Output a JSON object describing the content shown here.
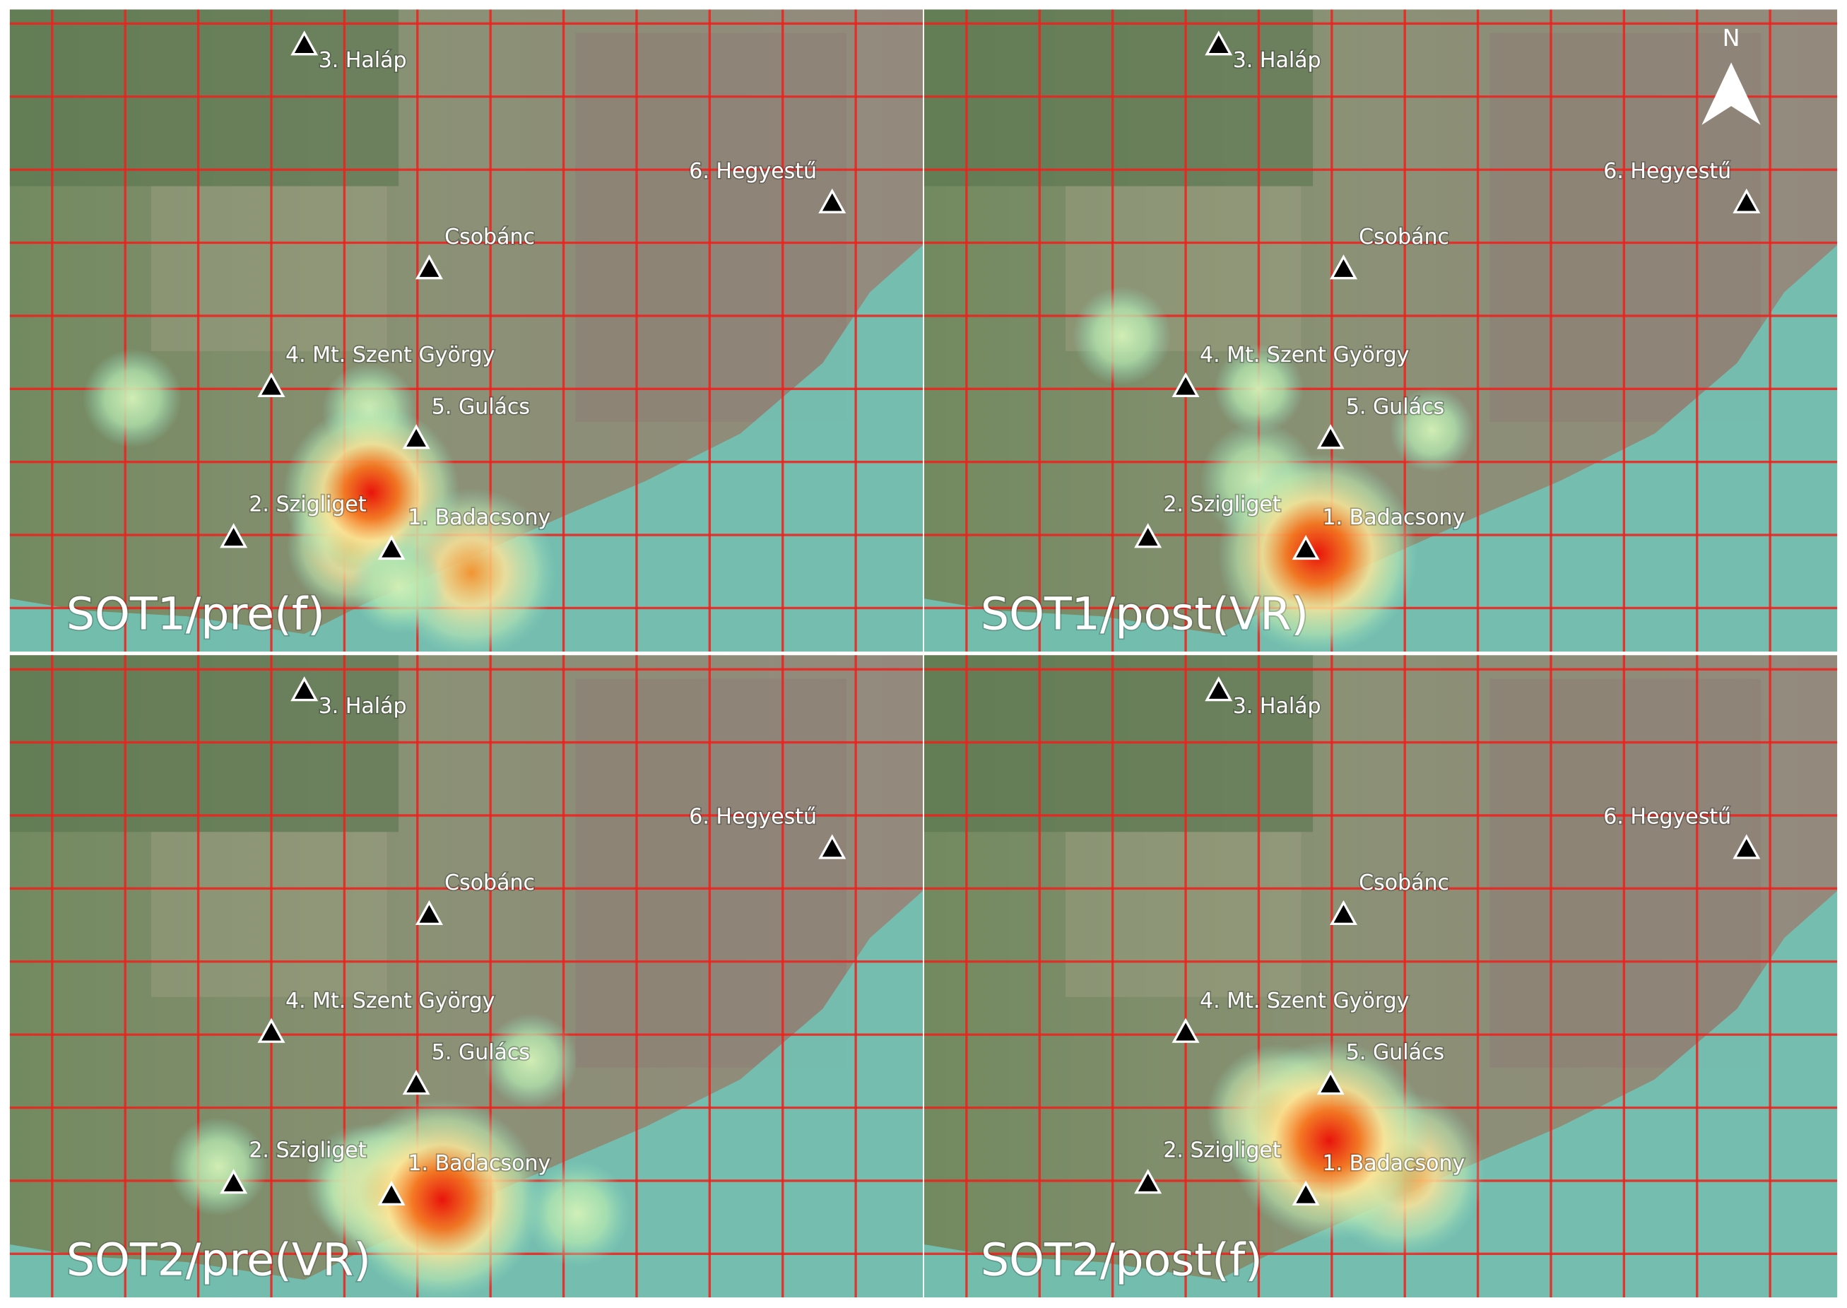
{
  "panels": [
    {
      "label": "SOT1/pre(f)"
    },
    {
      "label": "SOT1/post(VR)"
    },
    {
      "label": "SOT2/pre(VR)"
    },
    {
      "label": "SOT2/post(f)"
    }
  ],
  "landmarks": [
    "3. Haláp",
    "6. Hegyestű",
    "Csobánc",
    "4. Mt. Szent György",
    "5. Gulács",
    "2. Szigliget",
    "1. Badacsony"
  ],
  "north_label": "N"
}
